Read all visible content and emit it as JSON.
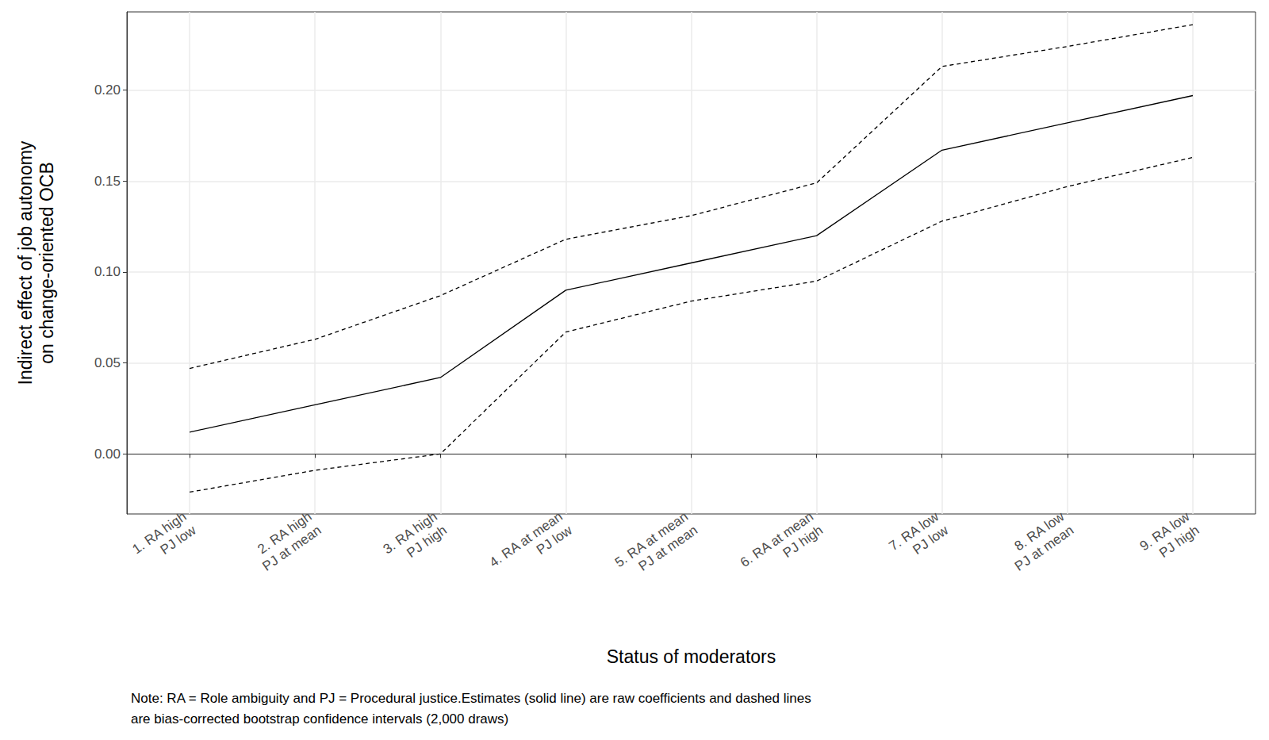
{
  "chart_data": {
    "type": "line",
    "x_label": "Status of moderators",
    "y_label": "Indirect effect of job autonomy\non change-oriented OCB",
    "note": [
      "Note: RA = Role ambiguity and PJ = Procedural justice.Estimates (solid line) are raw coefficients and dashed lines",
      "are bias-corrected bootstrap confidence intervals (2,000 draws)"
    ],
    "categories": [
      "1. RA high\nPJ low",
      "2. RA high\nPJ at mean",
      "3. RA high\nPJ high",
      "4. RA at mean\nPJ low",
      "5. RA at mean\nPJ at mean",
      "6. RA at mean\nPJ high",
      "7. RA low\nPJ low",
      "8. RA low\nPJ at mean",
      "9. RA low\nPJ high"
    ],
    "series": [
      {
        "color": "#000000",
        "line_style": "solid",
        "values": [
          0.012,
          0.027,
          0.042,
          0.09,
          0.105,
          0.12,
          0.167,
          0.182,
          0.197
        ]
      },
      {
        "color": "#000000",
        "line_style": "dashed",
        "values": [
          0.047,
          0.063,
          0.087,
          0.118,
          0.131,
          0.149,
          0.213,
          0.224,
          0.236
        ]
      },
      {
        "color": "#000000",
        "line_style": "dashed",
        "values": [
          -0.021,
          -0.009,
          0.0,
          0.067,
          0.084,
          0.095,
          0.128,
          0.147,
          0.163
        ]
      }
    ],
    "ylim": [
      -0.033,
      0.243
    ],
    "yticks": [
      {
        "value": 0,
        "label": "0.00"
      },
      {
        "value": 0.05,
        "label": "0.05"
      },
      {
        "value": 0.1,
        "label": "0.10"
      },
      {
        "value": 0.15,
        "label": "0.15"
      },
      {
        "value": 0.2,
        "label": "0.20"
      }
    ],
    "grid": true
  }
}
